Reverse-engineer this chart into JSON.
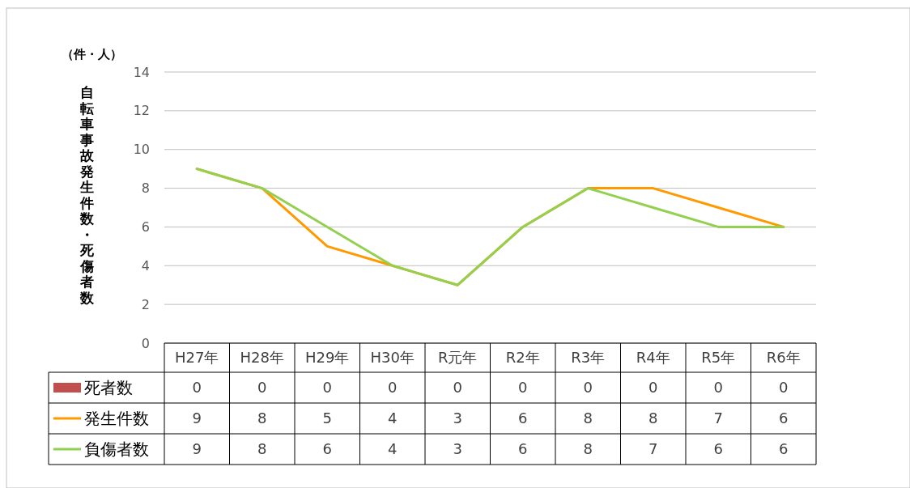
{
  "chart_data": {
    "type": "line",
    "ylabel": "自転車事故発生件数・死傷者数",
    "annotations": [
      "（件・人）"
    ],
    "categories": [
      "H27年",
      "H28年",
      "H29年",
      "H30年",
      "R元年",
      "R2年",
      "R3年",
      "R4年",
      "R5年",
      "R6年"
    ],
    "series": [
      {
        "name": "死者数",
        "type": "bar",
        "color": "#c0504d",
        "values": [
          0,
          0,
          0,
          0,
          0,
          0,
          0,
          0,
          0,
          0
        ]
      },
      {
        "name": "発生件数",
        "color": "#ff9900",
        "values": [
          9,
          8,
          5,
          4,
          3,
          6,
          8,
          8,
          7,
          6
        ]
      },
      {
        "name": "負傷者数",
        "color": "#92d050",
        "values": [
          9,
          8,
          6,
          4,
          3,
          6,
          8,
          7,
          6,
          6
        ]
      }
    ],
    "ylim": [
      0,
      14
    ],
    "yticks": [
      0,
      2,
      4,
      6,
      8,
      10,
      12,
      14
    ],
    "grid": "y",
    "legend": "bottom",
    "data_labels": true,
    "line_style": "solid",
    "marker": "none"
  }
}
